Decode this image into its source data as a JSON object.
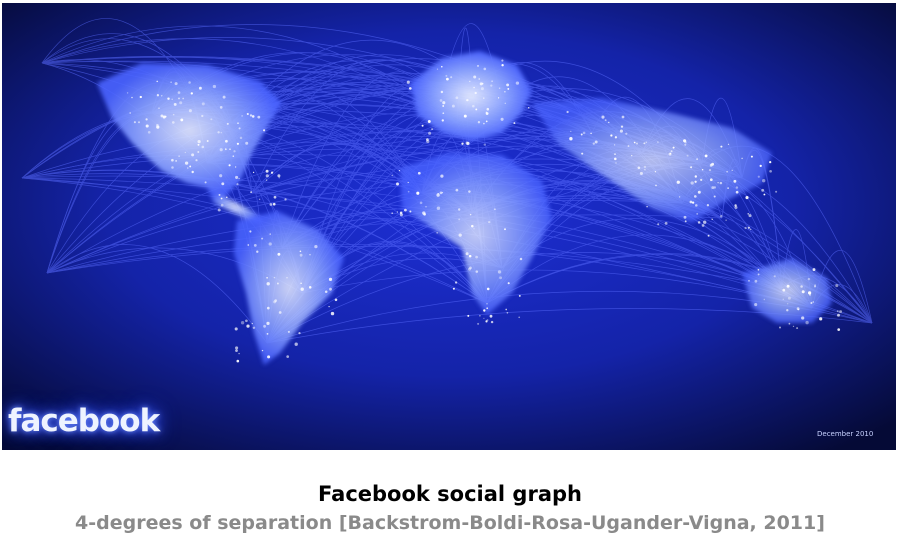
{
  "image": {
    "logo_text": "facebook",
    "credit_text": "December 2010",
    "colors": {
      "background": "#04082a",
      "edges": "#3a4dff",
      "glow": "#9fb4ff",
      "land": "#5f7dff"
    }
  },
  "caption": {
    "title": "Facebook social graph",
    "subtitle": "4-degrees of separation [Backstrom-Boldi-Rosa-Ugander-Vigna, 2011]"
  }
}
